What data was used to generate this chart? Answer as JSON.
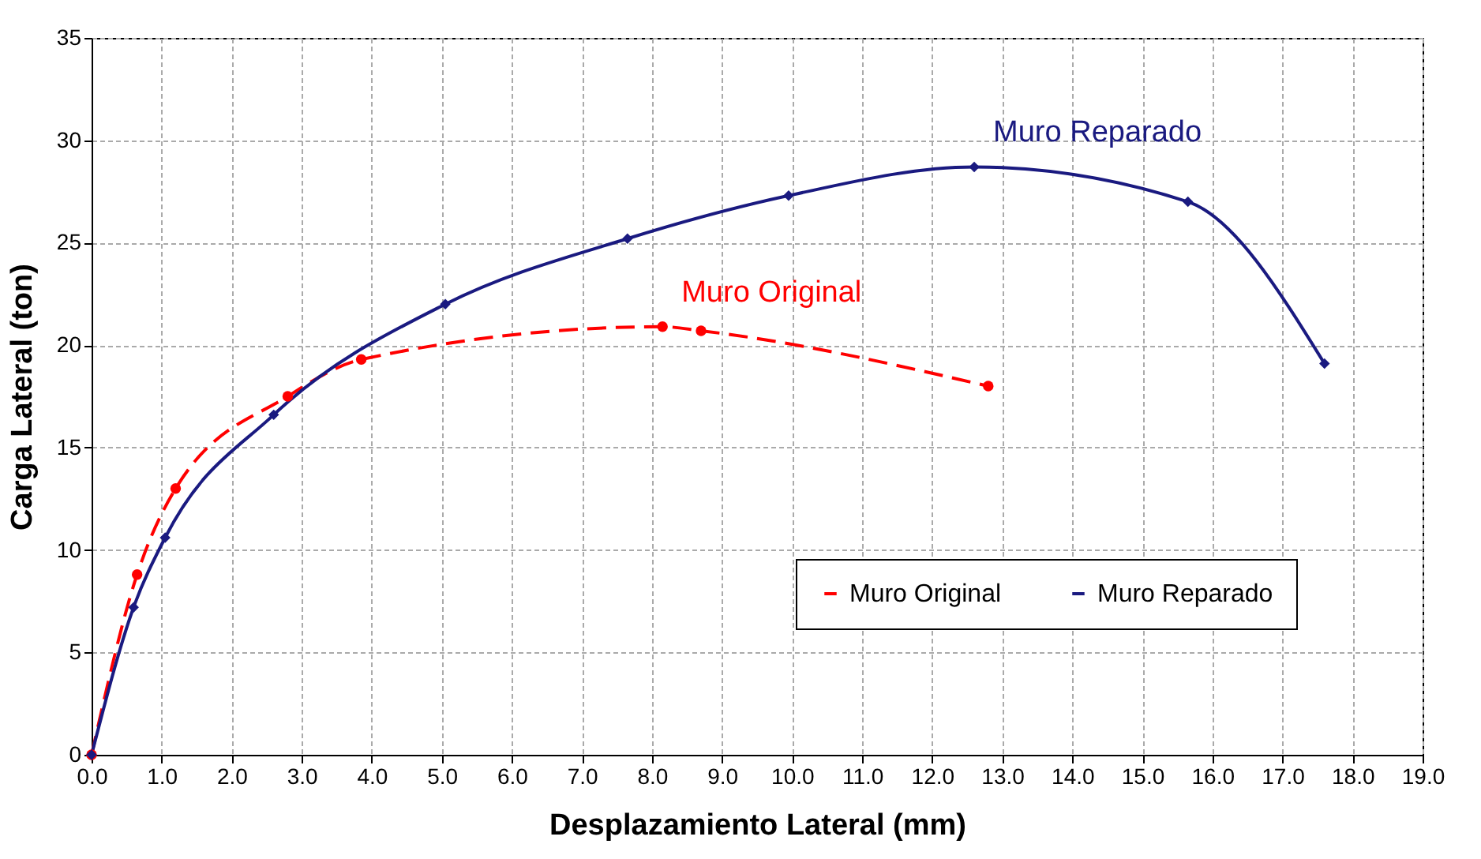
{
  "chart_data": {
    "type": "line",
    "xlabel": "Desplazamiento Lateral (mm)",
    "ylabel": "Carga Lateral (ton)",
    "series": [
      {
        "name": "Muro Original",
        "color": "#ff0000",
        "marker": "circle",
        "line_style": "dashed",
        "x": [
          0,
          0.65,
          1.2,
          2.8,
          3.85,
          8.15,
          8.7,
          12.8
        ],
        "values": [
          0,
          8.8,
          13,
          17.5,
          19.3,
          20.9,
          20.7,
          18
        ]
      },
      {
        "name": "Muro Reparado",
        "color": "#1a1a80",
        "marker": "diamond",
        "line_style": "solid",
        "x": [
          0,
          0.6,
          1.05,
          2.6,
          5.05,
          7.65,
          9.95,
          12.6,
          15.65,
          17.6
        ],
        "values": [
          0,
          7.2,
          10.6,
          16.6,
          22,
          25.2,
          27.3,
          28.7,
          27,
          19.1
        ]
      }
    ],
    "annotations": [
      "Muro Original",
      "Muro Reparado"
    ],
    "xlim": [
      0,
      19
    ],
    "ylim": [
      0,
      35
    ],
    "xticks": [
      {
        "value": 0,
        "label": "0.0"
      },
      {
        "value": 1,
        "label": "1.0"
      },
      {
        "value": 2,
        "label": "2.0"
      },
      {
        "value": 3,
        "label": "3.0"
      },
      {
        "value": 4,
        "label": "4.0"
      },
      {
        "value": 5,
        "label": "5.0"
      },
      {
        "value": 6,
        "label": "6.0"
      },
      {
        "value": 7,
        "label": "7.0"
      },
      {
        "value": 8,
        "label": "8.0"
      },
      {
        "value": 9,
        "label": "9.0"
      },
      {
        "value": 10,
        "label": "10.0"
      },
      {
        "value": 11,
        "label": "11.0"
      },
      {
        "value": 12,
        "label": "12.0"
      },
      {
        "value": 13,
        "label": "13.0"
      },
      {
        "value": 14,
        "label": "14.0"
      },
      {
        "value": 15,
        "label": "15.0"
      },
      {
        "value": 16,
        "label": "16.0"
      },
      {
        "value": 17,
        "label": "17.0"
      },
      {
        "value": 18,
        "label": "18.0"
      },
      {
        "value": 19,
        "label": "19.0"
      }
    ],
    "yticks": [
      0,
      5,
      10,
      15,
      20,
      25,
      30,
      35
    ],
    "grid": true,
    "legend": "bottom right"
  }
}
